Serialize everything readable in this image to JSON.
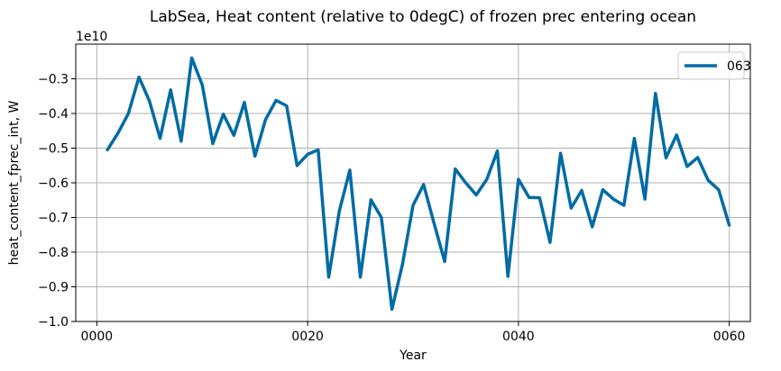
{
  "chart_data": {
    "type": "line",
    "title": "LabSea, Heat content (relative to 0degC) of frozen prec entering ocean",
    "xlabel": "Year",
    "ylabel": "heat_content_fprec_int, W",
    "y_offset_label": "1e10",
    "xlim": [
      -2.0,
      62.0
    ],
    "ylim": [
      -1.0,
      -0.2
    ],
    "x_ticks": [
      0,
      20,
      40,
      60
    ],
    "x_tick_labels": [
      "0000",
      "0020",
      "0040",
      "0060"
    ],
    "y_ticks": [
      -1.0,
      -0.9,
      -0.8,
      -0.7,
      -0.6,
      -0.5,
      -0.4,
      -0.3
    ],
    "y_tick_labels": [
      "−1.0",
      "−0.9",
      "−0.8",
      "−0.7",
      "−0.6",
      "−0.5",
      "−0.4",
      "−0.3"
    ],
    "grid": true,
    "legend_position": "top-right",
    "series": [
      {
        "name": "063",
        "color": "#006ba4",
        "x": [
          1,
          2,
          3,
          4,
          5,
          6,
          7,
          8,
          9,
          10,
          11,
          12,
          13,
          14,
          15,
          16,
          17,
          18,
          19,
          20,
          21,
          22,
          23,
          24,
          25,
          26,
          27,
          28,
          29,
          30,
          31,
          32,
          33,
          34,
          35,
          36,
          37,
          38,
          39,
          40,
          41,
          42,
          43,
          44,
          45,
          46,
          47,
          48,
          49,
          50,
          51,
          52,
          53,
          54,
          55,
          56,
          57,
          58,
          59,
          60
        ],
        "values": [
          -0.505,
          -0.457,
          -0.4,
          -0.295,
          -0.365,
          -0.472,
          -0.332,
          -0.48,
          -0.24,
          -0.318,
          -0.487,
          -0.402,
          -0.463,
          -0.368,
          -0.523,
          -0.418,
          -0.362,
          -0.378,
          -0.55,
          -0.518,
          -0.505,
          -0.872,
          -0.682,
          -0.563,
          -0.872,
          -0.649,
          -0.7,
          -0.965,
          -0.835,
          -0.665,
          -0.605,
          -0.718,
          -0.827,
          -0.56,
          -0.6,
          -0.635,
          -0.59,
          -0.508,
          -0.87,
          -0.59,
          -0.642,
          -0.643,
          -0.772,
          -0.515,
          -0.673,
          -0.622,
          -0.727,
          -0.62,
          -0.647,
          -0.665,
          -0.472,
          -0.647,
          -0.342,
          -0.528,
          -0.462,
          -0.553,
          -0.527,
          -0.593,
          -0.62,
          -0.722
        ]
      }
    ]
  }
}
